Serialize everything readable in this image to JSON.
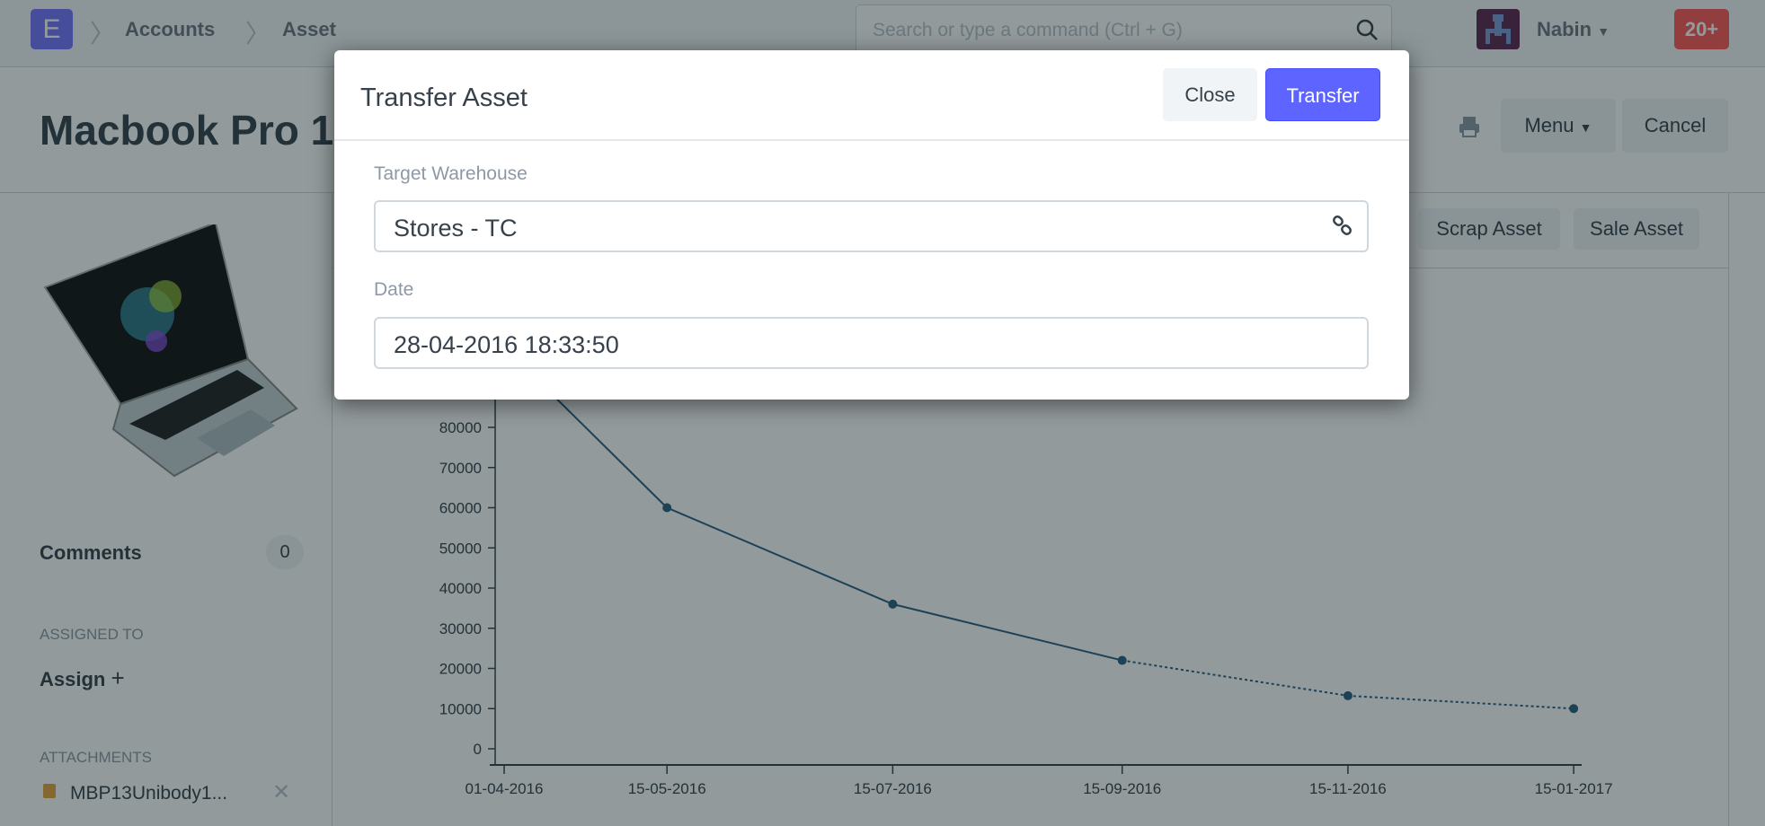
{
  "navbar": {
    "logo": "E",
    "breadcrumbs": [
      "Accounts",
      "Asset"
    ],
    "search_placeholder": "Search or type a command (Ctrl + G)",
    "user": "Nabin",
    "notifications": "20+"
  },
  "page": {
    "title": "Macbook Pro 1",
    "menu_label": "Menu",
    "cancel_label": "Cancel",
    "scrap_label": "Scrap Asset",
    "sale_label": "Sale Asset"
  },
  "sidebar": {
    "comments_label": "Comments",
    "comments_count": "0",
    "assigned_heading": "ASSIGNED TO",
    "assign_label": "Assign",
    "attachments_heading": "ATTACHMENTS",
    "attachment": "MBP13Unibody1..."
  },
  "dialog": {
    "title": "Transfer Asset",
    "close_label": "Close",
    "transfer_label": "Transfer",
    "warehouse_label": "Target Warehouse",
    "warehouse_value": "Stores - TC",
    "date_label": "Date",
    "date_value": "28-04-2016 18:33:50"
  },
  "colors": {
    "primary": "#5e64ff",
    "line": "#2a5d84",
    "badge": "#ff5858"
  },
  "chart_data": {
    "type": "line",
    "x": [
      "01-04-2016",
      "15-05-2016",
      "15-07-2016",
      "15-09-2016",
      "15-11-2016",
      "15-01-2017"
    ],
    "values": [
      100000,
      60000,
      36000,
      22000,
      13200,
      10000
    ],
    "dashed_from_index": 3,
    "yticks": [
      0,
      10000,
      20000,
      30000,
      40000,
      50000,
      60000,
      70000,
      80000
    ],
    "xticks": [
      "01-04-2016",
      "15-05-2016",
      "15-07-2016",
      "15-09-2016",
      "15-11-2016",
      "15-01-2017"
    ]
  }
}
